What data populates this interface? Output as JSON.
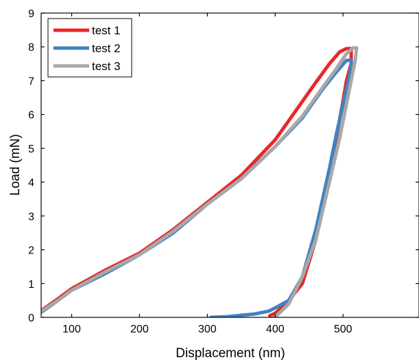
{
  "chart_data": {
    "type": "line",
    "title": "",
    "xlabel": "Displacement (nm)",
    "ylabel": "Load (mN)",
    "xlim": [
      55,
      612
    ],
    "ylim": [
      0,
      9
    ],
    "x_ticks": [
      100,
      200,
      300,
      400,
      500
    ],
    "y_ticks": [
      0,
      1,
      2,
      3,
      4,
      5,
      6,
      7,
      8,
      9
    ],
    "grid": false,
    "legend_position": "top-left",
    "series": [
      {
        "name": "test 1",
        "color": "#e8282b",
        "x": [
          55,
          80,
          100,
          150,
          200,
          250,
          300,
          350,
          400,
          430,
          460,
          480,
          495,
          505,
          512,
          512,
          505,
          500,
          490,
          480,
          460,
          440,
          420,
          410,
          400,
          392
        ],
        "y": [
          0.2,
          0.55,
          0.85,
          1.4,
          1.9,
          2.6,
          3.4,
          4.2,
          5.25,
          6.1,
          6.95,
          7.5,
          7.85,
          7.95,
          7.95,
          7.5,
          7.0,
          6.4,
          5.3,
          4.2,
          2.3,
          1.0,
          0.5,
          0.3,
          0.12,
          0.05
        ]
      },
      {
        "name": "test 2",
        "color": "#3f82c4",
        "x": [
          55,
          80,
          100,
          150,
          200,
          250,
          300,
          350,
          400,
          440,
          470,
          490,
          505,
          512,
          512,
          507,
          500,
          490,
          480,
          460,
          440,
          420,
          400,
          390,
          380,
          370,
          350,
          330,
          305
        ],
        "y": [
          0.15,
          0.5,
          0.8,
          1.3,
          1.85,
          2.5,
          3.35,
          4.1,
          5.05,
          5.9,
          6.75,
          7.25,
          7.6,
          7.6,
          7.4,
          6.9,
          6.3,
          5.4,
          4.4,
          2.6,
          1.2,
          0.5,
          0.28,
          0.18,
          0.14,
          0.1,
          0.06,
          0.02,
          0.0
        ]
      },
      {
        "name": "test 3",
        "color": "#a8a8a8",
        "x": [
          55,
          80,
          100,
          150,
          200,
          250,
          300,
          350,
          400,
          440,
          470,
          490,
          505,
          515,
          520,
          518,
          512,
          505,
          495,
          480,
          460,
          440,
          420,
          410,
          402,
          398
        ],
        "y": [
          0.18,
          0.5,
          0.8,
          1.35,
          1.85,
          2.55,
          3.35,
          4.1,
          5.05,
          5.95,
          6.8,
          7.35,
          7.8,
          7.97,
          7.97,
          7.6,
          7.0,
          6.3,
          5.3,
          4.0,
          2.3,
          1.2,
          0.4,
          0.2,
          0.05,
          0.0
        ]
      }
    ]
  }
}
